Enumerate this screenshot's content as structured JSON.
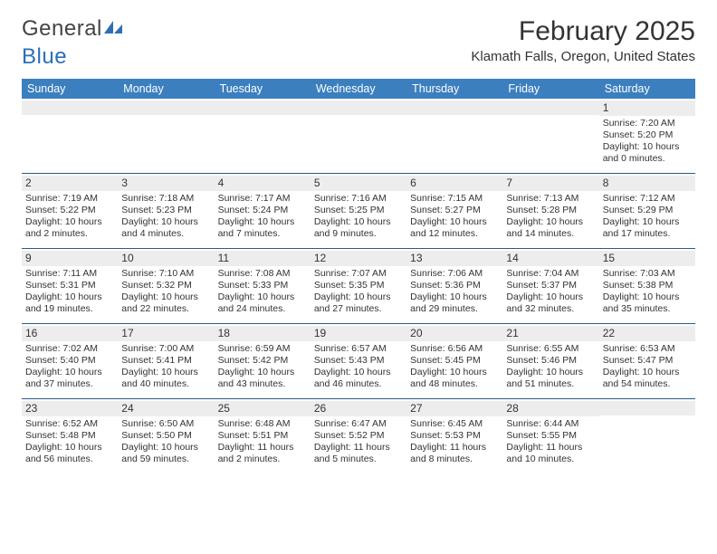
{
  "logo": {
    "text1": "General",
    "text2": "Blue"
  },
  "title": "February 2025",
  "location": "Klamath Falls, Oregon, United States",
  "header_bg": "#3b7fbf",
  "daynum_bg": "#ededed",
  "week_border": "#2d5a8a",
  "weekdays": [
    "Sunday",
    "Monday",
    "Tuesday",
    "Wednesday",
    "Thursday",
    "Friday",
    "Saturday"
  ],
  "weeks": [
    [
      {
        "n": "",
        "lines": []
      },
      {
        "n": "",
        "lines": []
      },
      {
        "n": "",
        "lines": []
      },
      {
        "n": "",
        "lines": []
      },
      {
        "n": "",
        "lines": []
      },
      {
        "n": "",
        "lines": []
      },
      {
        "n": "1",
        "lines": [
          "Sunrise: 7:20 AM",
          "Sunset: 5:20 PM",
          "Daylight: 10 hours and 0 minutes."
        ]
      }
    ],
    [
      {
        "n": "2",
        "lines": [
          "Sunrise: 7:19 AM",
          "Sunset: 5:22 PM",
          "Daylight: 10 hours and 2 minutes."
        ]
      },
      {
        "n": "3",
        "lines": [
          "Sunrise: 7:18 AM",
          "Sunset: 5:23 PM",
          "Daylight: 10 hours and 4 minutes."
        ]
      },
      {
        "n": "4",
        "lines": [
          "Sunrise: 7:17 AM",
          "Sunset: 5:24 PM",
          "Daylight: 10 hours and 7 minutes."
        ]
      },
      {
        "n": "5",
        "lines": [
          "Sunrise: 7:16 AM",
          "Sunset: 5:25 PM",
          "Daylight: 10 hours and 9 minutes."
        ]
      },
      {
        "n": "6",
        "lines": [
          "Sunrise: 7:15 AM",
          "Sunset: 5:27 PM",
          "Daylight: 10 hours and 12 minutes."
        ]
      },
      {
        "n": "7",
        "lines": [
          "Sunrise: 7:13 AM",
          "Sunset: 5:28 PM",
          "Daylight: 10 hours and 14 minutes."
        ]
      },
      {
        "n": "8",
        "lines": [
          "Sunrise: 7:12 AM",
          "Sunset: 5:29 PM",
          "Daylight: 10 hours and 17 minutes."
        ]
      }
    ],
    [
      {
        "n": "9",
        "lines": [
          "Sunrise: 7:11 AM",
          "Sunset: 5:31 PM",
          "Daylight: 10 hours and 19 minutes."
        ]
      },
      {
        "n": "10",
        "lines": [
          "Sunrise: 7:10 AM",
          "Sunset: 5:32 PM",
          "Daylight: 10 hours and 22 minutes."
        ]
      },
      {
        "n": "11",
        "lines": [
          "Sunrise: 7:08 AM",
          "Sunset: 5:33 PM",
          "Daylight: 10 hours and 24 minutes."
        ]
      },
      {
        "n": "12",
        "lines": [
          "Sunrise: 7:07 AM",
          "Sunset: 5:35 PM",
          "Daylight: 10 hours and 27 minutes."
        ]
      },
      {
        "n": "13",
        "lines": [
          "Sunrise: 7:06 AM",
          "Sunset: 5:36 PM",
          "Daylight: 10 hours and 29 minutes."
        ]
      },
      {
        "n": "14",
        "lines": [
          "Sunrise: 7:04 AM",
          "Sunset: 5:37 PM",
          "Daylight: 10 hours and 32 minutes."
        ]
      },
      {
        "n": "15",
        "lines": [
          "Sunrise: 7:03 AM",
          "Sunset: 5:38 PM",
          "Daylight: 10 hours and 35 minutes."
        ]
      }
    ],
    [
      {
        "n": "16",
        "lines": [
          "Sunrise: 7:02 AM",
          "Sunset: 5:40 PM",
          "Daylight: 10 hours and 37 minutes."
        ]
      },
      {
        "n": "17",
        "lines": [
          "Sunrise: 7:00 AM",
          "Sunset: 5:41 PM",
          "Daylight: 10 hours and 40 minutes."
        ]
      },
      {
        "n": "18",
        "lines": [
          "Sunrise: 6:59 AM",
          "Sunset: 5:42 PM",
          "Daylight: 10 hours and 43 minutes."
        ]
      },
      {
        "n": "19",
        "lines": [
          "Sunrise: 6:57 AM",
          "Sunset: 5:43 PM",
          "Daylight: 10 hours and 46 minutes."
        ]
      },
      {
        "n": "20",
        "lines": [
          "Sunrise: 6:56 AM",
          "Sunset: 5:45 PM",
          "Daylight: 10 hours and 48 minutes."
        ]
      },
      {
        "n": "21",
        "lines": [
          "Sunrise: 6:55 AM",
          "Sunset: 5:46 PM",
          "Daylight: 10 hours and 51 minutes."
        ]
      },
      {
        "n": "22",
        "lines": [
          "Sunrise: 6:53 AM",
          "Sunset: 5:47 PM",
          "Daylight: 10 hours and 54 minutes."
        ]
      }
    ],
    [
      {
        "n": "23",
        "lines": [
          "Sunrise: 6:52 AM",
          "Sunset: 5:48 PM",
          "Daylight: 10 hours and 56 minutes."
        ]
      },
      {
        "n": "24",
        "lines": [
          "Sunrise: 6:50 AM",
          "Sunset: 5:50 PM",
          "Daylight: 10 hours and 59 minutes."
        ]
      },
      {
        "n": "25",
        "lines": [
          "Sunrise: 6:48 AM",
          "Sunset: 5:51 PM",
          "Daylight: 11 hours and 2 minutes."
        ]
      },
      {
        "n": "26",
        "lines": [
          "Sunrise: 6:47 AM",
          "Sunset: 5:52 PM",
          "Daylight: 11 hours and 5 minutes."
        ]
      },
      {
        "n": "27",
        "lines": [
          "Sunrise: 6:45 AM",
          "Sunset: 5:53 PM",
          "Daylight: 11 hours and 8 minutes."
        ]
      },
      {
        "n": "28",
        "lines": [
          "Sunrise: 6:44 AM",
          "Sunset: 5:55 PM",
          "Daylight: 11 hours and 10 minutes."
        ]
      },
      {
        "n": "",
        "lines": []
      }
    ]
  ]
}
